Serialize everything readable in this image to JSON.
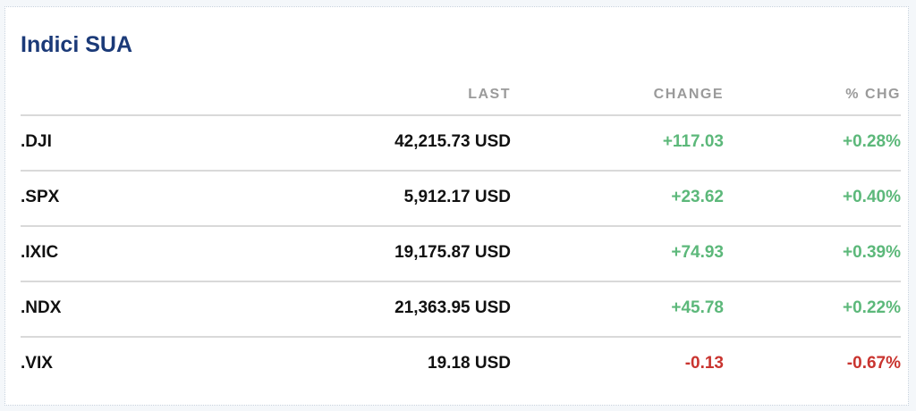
{
  "title": "Indici SUA",
  "columns": [
    "",
    "LAST",
    "CHANGE",
    "% CHG"
  ],
  "colors": {
    "title": "#1b3a78",
    "positive": "#5cb87a",
    "negative": "#c9342f"
  },
  "rows": [
    {
      "symbol": ".DJI",
      "last": "42,215.73 USD",
      "change": "+117.03",
      "pct": "+0.28%",
      "direction": "up"
    },
    {
      "symbol": ".SPX",
      "last": "5,912.17 USD",
      "change": "+23.62",
      "pct": "+0.40%",
      "direction": "up"
    },
    {
      "symbol": ".IXIC",
      "last": "19,175.87 USD",
      "change": "+74.93",
      "pct": "+0.39%",
      "direction": "up"
    },
    {
      "symbol": ".NDX",
      "last": "21,363.95 USD",
      "change": "+45.78",
      "pct": "+0.22%",
      "direction": "up"
    },
    {
      "symbol": ".VIX",
      "last": "19.18 USD",
      "change": "-0.13",
      "pct": "-0.67%",
      "direction": "down"
    }
  ]
}
